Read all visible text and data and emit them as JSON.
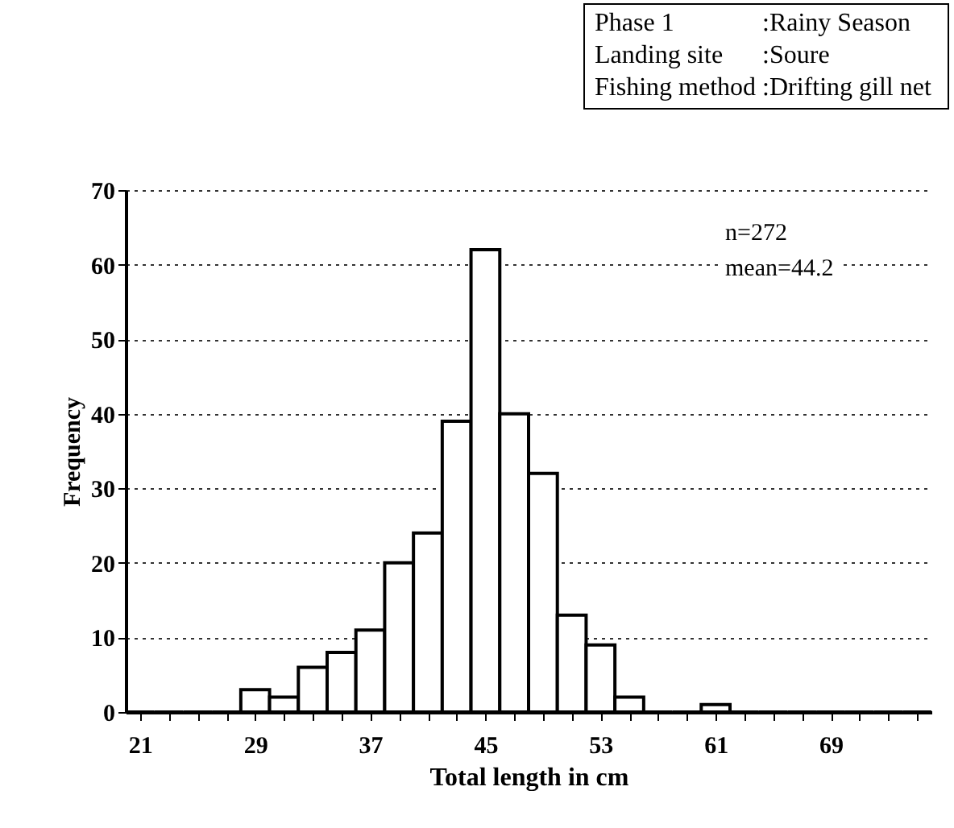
{
  "chart_data": {
    "type": "histogram",
    "xlabel": "Total length in cm",
    "ylabel": "Frequency",
    "bins": [
      20,
      22,
      24,
      26,
      28,
      30,
      32,
      34,
      36,
      38,
      40,
      42,
      44,
      46,
      48,
      50,
      52,
      54,
      56,
      58,
      60,
      62,
      64,
      66,
      68,
      70,
      72,
      74,
      76
    ],
    "values": [
      0,
      0,
      0,
      0,
      3,
      2,
      6,
      8,
      11,
      20,
      24,
      39,
      62,
      40,
      32,
      13,
      9,
      2,
      0,
      0,
      1,
      0,
      0,
      0,
      0,
      0,
      0,
      0
    ],
    "color": "#ffffff",
    "xlim": [
      20,
      76
    ],
    "xticks": [
      21,
      {
        "value": 23,
        "label": null
      },
      {
        "value": 25,
        "label": null
      },
      {
        "value": 27,
        "label": null
      },
      29,
      {
        "value": 31,
        "label": null
      },
      {
        "value": 33,
        "label": null
      },
      {
        "value": 35,
        "label": null
      },
      37,
      {
        "value": 39,
        "label": null
      },
      {
        "value": 41,
        "label": null
      },
      {
        "value": 43,
        "label": null
      },
      45,
      {
        "value": 47,
        "label": null
      },
      {
        "value": 49,
        "label": null
      },
      {
        "value": 51,
        "label": null
      },
      53,
      {
        "value": 55,
        "label": null
      },
      {
        "value": 57,
        "label": null
      },
      {
        "value": 59,
        "label": null
      },
      61,
      {
        "value": 63,
        "label": null
      },
      {
        "value": 65,
        "label": null
      },
      {
        "value": 67,
        "label": null
      },
      69,
      {
        "value": 71,
        "label": null
      },
      {
        "value": 73,
        "label": null
      },
      {
        "value": 75,
        "label": null
      }
    ],
    "ylim": [
      0,
      70
    ],
    "yticks": [
      0,
      10,
      20,
      30,
      40,
      50,
      60,
      70
    ],
    "grid": "y",
    "annotations": [
      "Phase 1",
      ":Rainy Season",
      "Landing site",
      ":Soure",
      "Fishing method",
      ":Drifting gill net",
      "n=272",
      "mean=44.2"
    ]
  }
}
